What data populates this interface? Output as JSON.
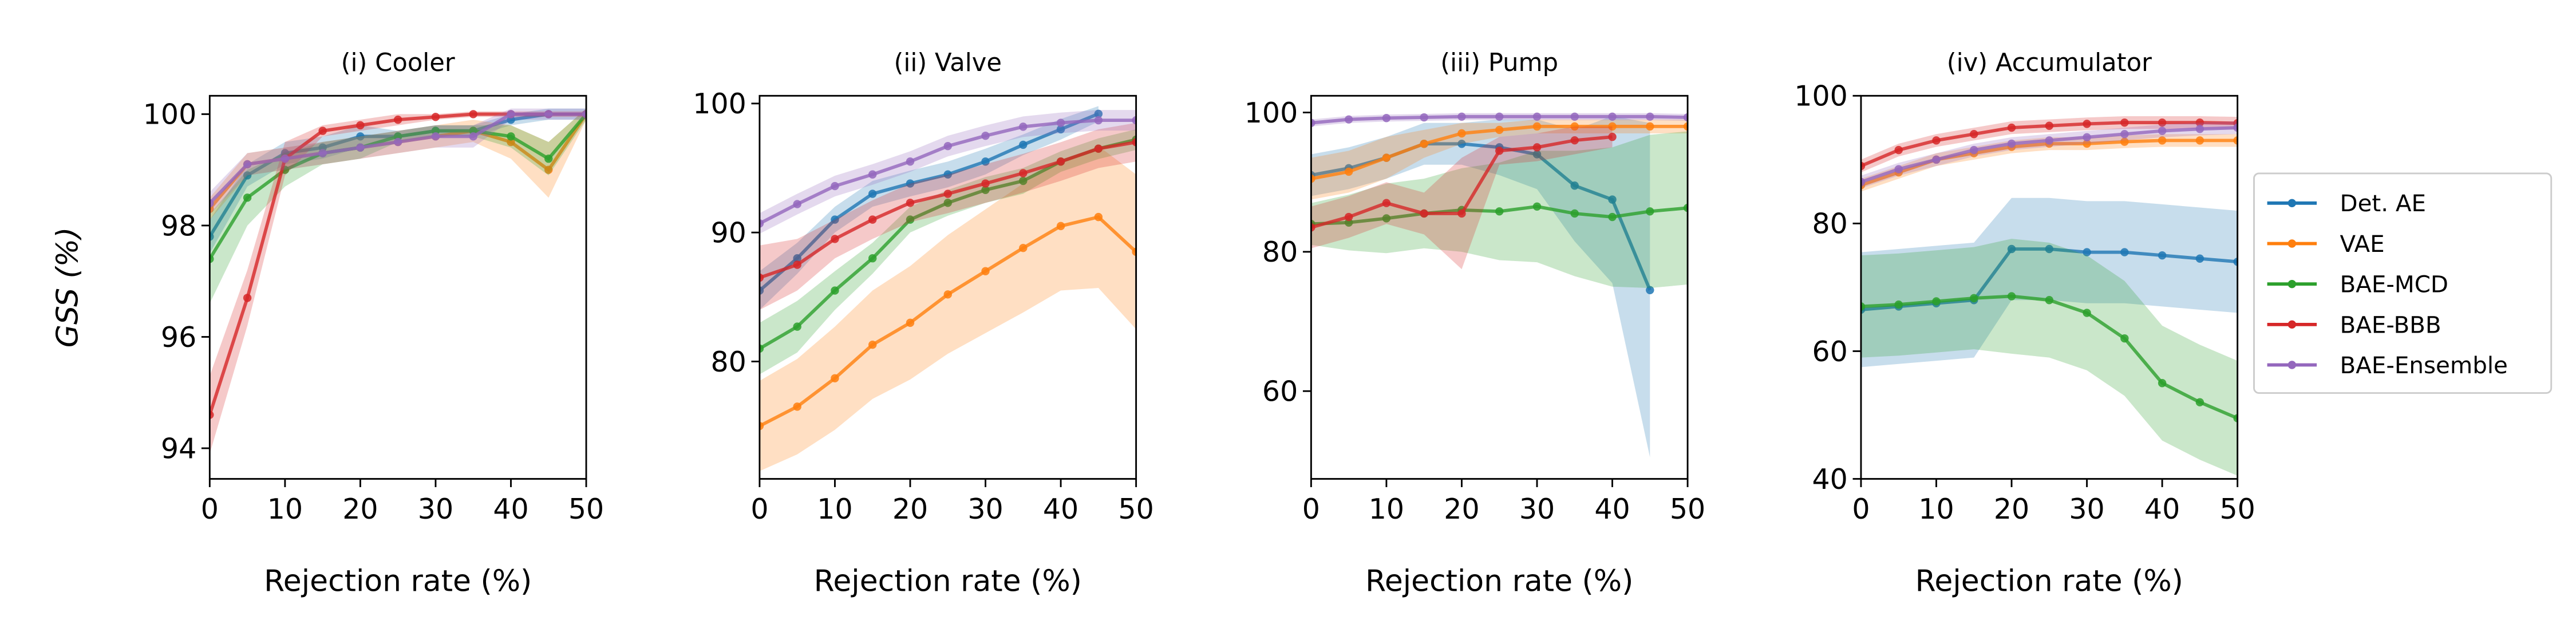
{
  "chart_data": [
    {
      "type": "line",
      "title": "(i) Cooler",
      "xlabel": "Rejection rate (%)",
      "ylabel": "GSS (%)",
      "x": [
        0,
        5,
        10,
        15,
        20,
        25,
        30,
        35,
        40,
        45,
        50
      ],
      "xlim": [
        0,
        50
      ],
      "xticks": [
        0,
        10,
        20,
        30,
        40,
        50
      ],
      "ylim": [
        93.45,
        100.33
      ],
      "yticks": [
        94,
        96,
        98,
        100
      ],
      "series": [
        {
          "color": "#1f77b4",
          "values": [
            97.8,
            98.9,
            99.3,
            99.4,
            99.6,
            99.6,
            99.7,
            99.7,
            99.9,
            100,
            100
          ],
          "errors": [
            0.3,
            0.2,
            0.2,
            0.2,
            0.2,
            0.1,
            0.1,
            0.1,
            0.1,
            0.1,
            0.1
          ]
        },
        {
          "color": "#ff7f0e",
          "values": [
            98.3,
            99.1,
            99.2,
            99.3,
            99.4,
            99.5,
            99.6,
            99.7,
            99.5,
            99.0,
            100
          ],
          "errors": [
            0.2,
            0.2,
            0.2,
            0.2,
            0.2,
            0.2,
            0.2,
            0.2,
            0.3,
            0.5,
            0.1
          ]
        },
        {
          "color": "#2ca02c",
          "values": [
            97.4,
            98.5,
            99.0,
            99.3,
            99.4,
            99.6,
            99.7,
            99.7,
            99.6,
            99.2,
            100
          ],
          "errors": [
            0.8,
            0.5,
            0.3,
            0.2,
            0.2,
            0.1,
            0.1,
            0.1,
            0.2,
            0.3,
            0.1
          ]
        },
        {
          "color": "#d62728",
          "values": [
            94.6,
            96.7,
            99.2,
            99.7,
            99.8,
            99.9,
            99.95,
            100,
            100,
            100,
            100
          ],
          "errors": [
            0.7,
            0.5,
            0.3,
            0.1,
            0.1,
            0.1,
            0.05,
            0.05,
            0.05,
            0.05,
            0.05
          ]
        },
        {
          "color": "#9467bd",
          "values": [
            98.4,
            99.1,
            99.2,
            99.3,
            99.4,
            99.5,
            99.6,
            99.6,
            100,
            100,
            100
          ],
          "errors": [
            0.2,
            0.2,
            0.2,
            0.2,
            0.2,
            0.2,
            0.2,
            0.2,
            0.1,
            0.1,
            0.1
          ]
        }
      ]
    },
    {
      "type": "line",
      "title": "(ii) Valve",
      "xlabel": "Rejection rate (%)",
      "x": [
        0,
        5,
        10,
        15,
        20,
        25,
        30,
        35,
        40,
        45,
        50
      ],
      "xlim": [
        0,
        50
      ],
      "xticks": [
        0,
        10,
        20,
        30,
        40,
        50
      ],
      "ylim": [
        70.9,
        100.6
      ],
      "yticks": [
        80,
        90,
        100
      ],
      "series": [
        {
          "color": "#1f77b4",
          "values": [
            85.5,
            88.0,
            91.0,
            93.0,
            93.8,
            94.5,
            95.5,
            96.8,
            98.0,
            99.2,
            null
          ],
          "errors": [
            1.5,
            1.2,
            1,
            1,
            1,
            1,
            1,
            0.8,
            0.8,
            0.6,
            null
          ]
        },
        {
          "color": "#ff7f0e",
          "values": [
            75,
            76.5,
            78.7,
            81.3,
            83,
            85.2,
            87,
            88.8,
            90.5,
            91.2,
            88.5
          ],
          "errors": [
            3.5,
            3.7,
            4,
            4.2,
            4.4,
            4.6,
            4.8,
            5,
            5,
            5.5,
            6
          ]
        },
        {
          "color": "#2ca02c",
          "values": [
            81,
            82.7,
            85.5,
            88,
            91,
            92.3,
            93.3,
            94,
            95.5,
            96.5,
            97.2
          ],
          "errors": [
            2,
            2,
            1.5,
            1.2,
            1,
            1,
            1,
            1,
            0.8,
            0.8,
            0.8
          ]
        },
        {
          "color": "#d62728",
          "values": [
            86.5,
            87.5,
            89.5,
            91,
            92.3,
            93,
            93.8,
            94.6,
            95.5,
            96.5,
            97
          ],
          "errors": [
            2.5,
            2,
            1.5,
            1.5,
            1.5,
            1.5,
            1.5,
            1.5,
            1.5,
            1.5,
            1.5
          ]
        },
        {
          "color": "#9467bd",
          "values": [
            90.7,
            92.2,
            93.6,
            94.5,
            95.5,
            96.7,
            97.5,
            98.2,
            98.5,
            98.7,
            98.7
          ],
          "errors": [
            0.8,
            0.8,
            0.8,
            0.8,
            0.8,
            0.8,
            0.8,
            0.8,
            0.8,
            0.8,
            0.8
          ]
        }
      ]
    },
    {
      "type": "line",
      "title": "(iii) Pump",
      "xlabel": "Rejection rate (%)",
      "x": [
        0,
        5,
        10,
        15,
        20,
        25,
        30,
        35,
        40,
        45,
        50
      ],
      "xlim": [
        0,
        50
      ],
      "xticks": [
        0,
        10,
        20,
        30,
        40,
        50
      ],
      "ylim": [
        47.4,
        102.4
      ],
      "yticks": [
        60,
        80,
        100
      ],
      "series": [
        {
          "color": "#1f77b4",
          "values": [
            91,
            92,
            93.5,
            95.5,
            95.5,
            95,
            94,
            89.5,
            87.5,
            74.5,
            null
          ],
          "errors": [
            3,
            3,
            3,
            3,
            3,
            4,
            5,
            8,
            12,
            24,
            null
          ]
        },
        {
          "color": "#ff7f0e",
          "values": [
            90.5,
            91.5,
            93.5,
            95.5,
            97,
            97.5,
            98,
            98,
            98,
            98,
            98
          ],
          "errors": [
            3,
            3,
            3,
            2,
            1.5,
            1,
            1,
            1,
            1,
            1,
            1
          ]
        },
        {
          "color": "#2ca02c",
          "values": [
            84,
            84.2,
            84.8,
            85.5,
            86,
            85.8,
            86.5,
            85.5,
            85,
            85.8,
            86.3
          ],
          "errors": [
            3,
            4,
            5,
            5,
            6,
            7,
            8,
            9,
            10,
            11,
            11
          ]
        },
        {
          "color": "#d62728",
          "values": [
            83.5,
            85,
            87,
            85.5,
            85.5,
            94.5,
            95,
            96,
            96.5,
            null,
            null
          ],
          "errors": [
            3,
            3,
            3,
            3,
            8,
            2,
            2,
            2,
            1.5,
            null,
            null
          ]
        },
        {
          "color": "#9467bd",
          "values": [
            98.5,
            99,
            99.2,
            99.3,
            99.4,
            99.4,
            99.4,
            99.4,
            99.4,
            99.4,
            99.3
          ],
          "errors": [
            0.5,
            0.5,
            0.5,
            0.5,
            0.5,
            0.5,
            0.5,
            0.5,
            0.5,
            0.5,
            0.5
          ]
        }
      ]
    },
    {
      "type": "line",
      "title": "(iv) Accumulator",
      "xlabel": "Rejection rate (%)",
      "x": [
        0,
        5,
        10,
        15,
        20,
        25,
        30,
        35,
        40,
        45,
        50
      ],
      "xlim": [
        0,
        50
      ],
      "xticks": [
        0,
        10,
        20,
        30,
        40,
        50
      ],
      "ylim": [
        40,
        100
      ],
      "yticks": [
        40,
        60,
        80,
        100
      ],
      "legend": "right",
      "series": [
        {
          "name": "Det. AE",
          "color": "#1f77b4",
          "values": [
            66.5,
            67,
            67.5,
            68,
            76,
            76,
            75.5,
            75.5,
            75,
            74.5,
            74
          ],
          "errors": [
            9,
            9,
            9,
            9,
            8,
            8,
            8,
            8,
            8,
            8,
            8
          ]
        },
        {
          "name": "VAE",
          "color": "#ff7f0e",
          "values": [
            86,
            88,
            90,
            91,
            92,
            92.5,
            92.5,
            92.8,
            93,
            93,
            93
          ],
          "errors": [
            1,
            1,
            1,
            1,
            1,
            1,
            1,
            1,
            1,
            1,
            1
          ]
        },
        {
          "name": "BAE-MCD",
          "color": "#2ca02c",
          "values": [
            67,
            67.3,
            67.8,
            68.3,
            68.6,
            68,
            66,
            62,
            55,
            52,
            49.5
          ],
          "errors": [
            8,
            8,
            8,
            8,
            9,
            9,
            9,
            9,
            9,
            9,
            9
          ]
        },
        {
          "name": "BAE-BBB",
          "color": "#d62728",
          "values": [
            89,
            91.5,
            93,
            94,
            95,
            95.3,
            95.6,
            95.8,
            95.8,
            95.8,
            95.7
          ],
          "errors": [
            1,
            1,
            1,
            1,
            1,
            1,
            1,
            1,
            1,
            1,
            1
          ]
        },
        {
          "name": "BAE-Ensemble",
          "color": "#9467bd",
          "values": [
            86.5,
            88.5,
            90,
            91.5,
            92.5,
            93,
            93.5,
            94,
            94.5,
            94.8,
            95
          ],
          "errors": [
            1,
            1,
            1,
            1,
            1,
            1,
            1,
            1,
            1,
            1,
            1
          ]
        }
      ]
    }
  ]
}
